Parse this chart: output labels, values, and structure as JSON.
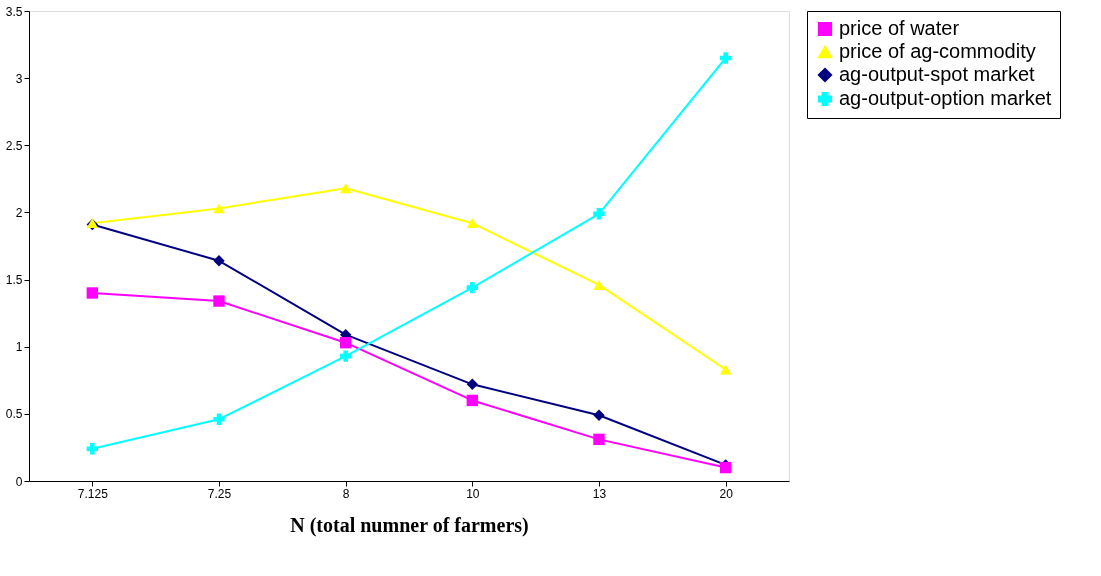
{
  "chart_data": {
    "type": "line",
    "xlabel": "N (total numner of farmers)",
    "categories": [
      "7.125",
      "7.25",
      "8",
      "10",
      "13",
      "20"
    ],
    "series": [
      {
        "name": "price of water",
        "color": "#ff00ff",
        "marker": "square",
        "values": [
          1.4,
          1.34,
          1.03,
          0.6,
          0.31,
          0.1
        ]
      },
      {
        "name": "price of ag-commodity",
        "color": "#ffff00",
        "marker": "triangle",
        "values": [
          1.92,
          2.03,
          2.18,
          1.92,
          1.46,
          0.83
        ]
      },
      {
        "name": "ag-output-spot market",
        "color": "#000080",
        "marker": "diamond",
        "values": [
          1.91,
          1.64,
          1.09,
          0.72,
          0.49,
          0.12
        ]
      },
      {
        "name": "ag-output-option market",
        "color": "#00ffff",
        "marker": "cross",
        "values": [
          0.24,
          0.46,
          0.93,
          1.44,
          1.99,
          3.15
        ]
      }
    ],
    "ylim": [
      0,
      3.5
    ],
    "yticks": [
      0,
      0.5,
      1,
      1.5,
      2,
      2.5,
      3,
      3.5
    ],
    "grid": false,
    "legend": "right",
    "line_style": "solid"
  }
}
